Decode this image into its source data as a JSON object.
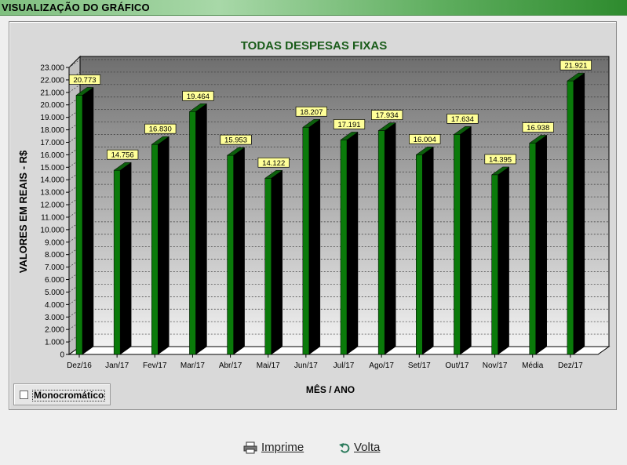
{
  "window": {
    "title": "VISUALIZAÇÃO DO GRÁFICO"
  },
  "chart_data": {
    "type": "bar",
    "title": "TODAS DESPESAS FIXAS",
    "xlabel": "MÊS / ANO",
    "ylabel": "VALORES EM REAIS - R$",
    "ylim": [
      0,
      23000
    ],
    "ytick_step": 1000,
    "ytick_labels": [
      "0",
      "1.000",
      "2.000",
      "3.000",
      "4.000",
      "5.000",
      "6.000",
      "7.000",
      "8.000",
      "9.000",
      "10.000",
      "11.000",
      "12.000",
      "13.000",
      "14.000",
      "15.000",
      "16.000",
      "17.000",
      "18.000",
      "19.000",
      "20.000",
      "21.000",
      "22.000",
      "23.000"
    ],
    "categories": [
      "Dez/16",
      "Jan/17",
      "Fev/17",
      "Mar/17",
      "Abr/17",
      "Mai/17",
      "Jun/17",
      "Jul/17",
      "Ago/17",
      "Set/17",
      "Out/17",
      "Nov/17",
      "Média",
      "Dez/17"
    ],
    "values": [
      20773,
      14756,
      16830,
      19464,
      15953,
      14122,
      18207,
      17191,
      17934,
      16004,
      17634,
      14395,
      16938,
      21921
    ],
    "value_labels": [
      "20.773",
      "14.756",
      "16.830",
      "19.464",
      "15.953",
      "14.122",
      "18.207",
      "17.191",
      "17.934",
      "16.004",
      "17.634",
      "14.395",
      "16.938",
      "21.921"
    ],
    "grid": true,
    "legend": "none",
    "colors": {
      "bar_front": "#0a7a0a",
      "bar_side": "#000000",
      "label_bg": "#ffff99",
      "title": "#1a5c1a"
    }
  },
  "options": {
    "monochrome_label": "Monocromático",
    "monochrome_checked": false
  },
  "buttons": {
    "print_label": "Imprime",
    "back_label": "Volta"
  }
}
